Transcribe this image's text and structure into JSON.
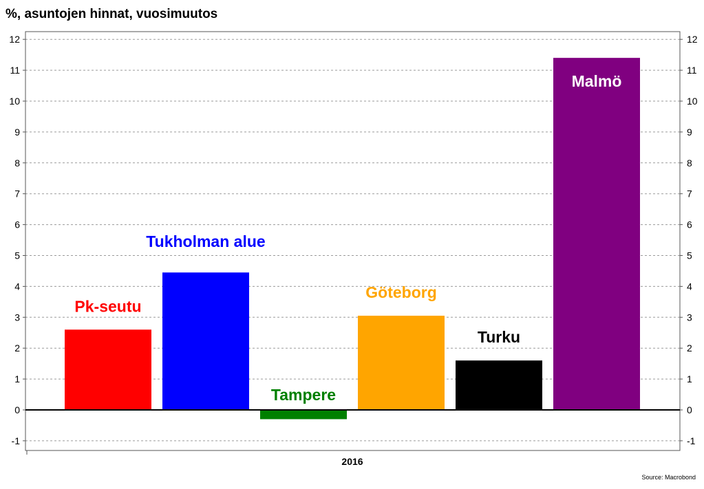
{
  "title": "%, asuntojen hinnat, vuosimuutos",
  "source": "Source: Macrobond",
  "chart_data": {
    "type": "bar",
    "title": "%, asuntojen hinnat, vuosimuutos",
    "xlabel": "",
    "ylabel": "",
    "ylim": [
      -1.3,
      12.2
    ],
    "yticks": [
      -1,
      0,
      1,
      2,
      3,
      4,
      5,
      6,
      7,
      8,
      9,
      10,
      11,
      12
    ],
    "y_axis_both_sides": true,
    "grid": true,
    "x_tick_label": "2016",
    "categories": [
      "Pk-seutu",
      "Tukholman alue",
      "Tampere",
      "Göteborg",
      "Turku",
      "Malmö"
    ],
    "values": [
      2.6,
      4.45,
      -0.3,
      3.05,
      1.6,
      11.4
    ],
    "colors": [
      "#ff0000",
      "#0000ff",
      "#008000",
      "#ffa500",
      "#000000",
      "#800080"
    ],
    "label_colors": [
      "#ff0000",
      "#0000ff",
      "#008000",
      "#ffa500",
      "#000000",
      "#ffffff"
    ]
  }
}
